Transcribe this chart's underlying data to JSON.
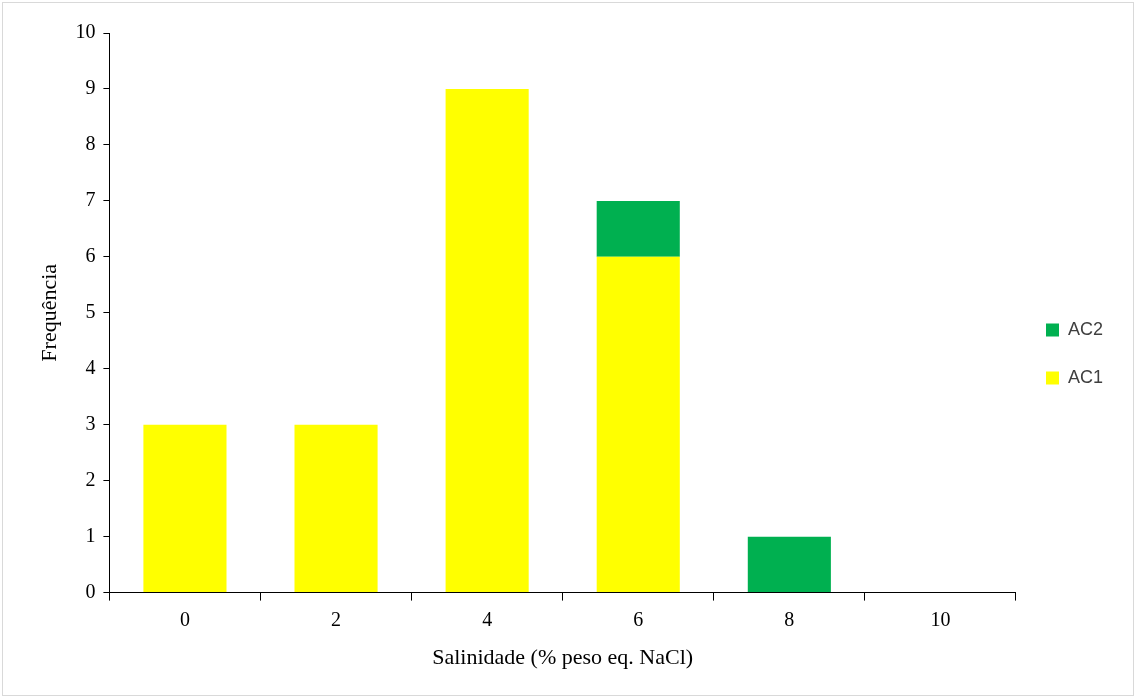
{
  "chart_data": {
    "type": "bar",
    "stacked": true,
    "xlabel": "Salinidade (% peso eq. NaCl)",
    "ylabel": "Frequência",
    "categories": [
      "0",
      "2",
      "4",
      "6",
      "8",
      "10"
    ],
    "series": [
      {
        "name": "AC1",
        "color": "#ffff00",
        "values": [
          3,
          3,
          9,
          6,
          0,
          0
        ]
      },
      {
        "name": "AC2",
        "color": "#00b050",
        "values": [
          0,
          0,
          0,
          1,
          1,
          0
        ]
      }
    ],
    "ylim": [
      0,
      10
    ],
    "yticks": [
      0,
      1,
      2,
      3,
      4,
      5,
      6,
      7,
      8,
      9,
      10
    ],
    "grid": false,
    "legend": "right"
  }
}
